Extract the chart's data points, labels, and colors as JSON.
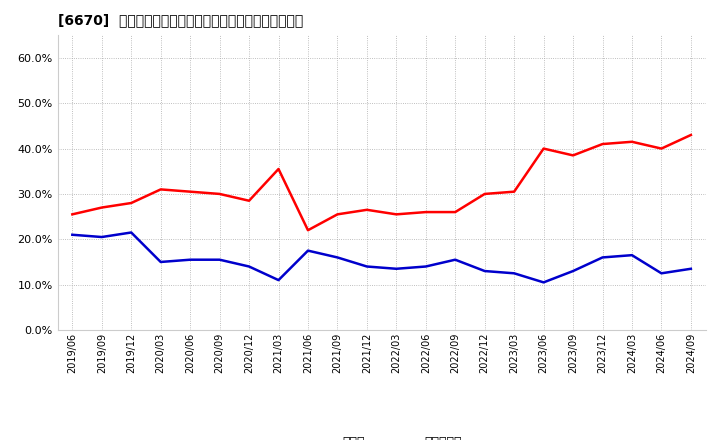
{
  "title": "[6670]  現預金、有利子負債の総資産に対する比率の推移",
  "ylim": [
    0.0,
    0.65
  ],
  "yticks": [
    0.0,
    0.1,
    0.2,
    0.3,
    0.4,
    0.5,
    0.6
  ],
  "legend_labels": [
    "現預金",
    "有利子負債"
  ],
  "line_colors": [
    "#ff0000",
    "#0000cc"
  ],
  "background_color": "#ffffff",
  "plot_bg_color": "#ffffff",
  "dates": [
    "2019/06",
    "2019/09",
    "2019/12",
    "2020/03",
    "2020/06",
    "2020/09",
    "2020/12",
    "2021/03",
    "2021/06",
    "2021/09",
    "2021/12",
    "2022/03",
    "2022/06",
    "2022/09",
    "2022/12",
    "2023/03",
    "2023/06",
    "2023/09",
    "2023/12",
    "2024/03",
    "2024/06",
    "2024/09"
  ],
  "cash": [
    0.255,
    0.27,
    0.28,
    0.31,
    0.305,
    0.3,
    0.285,
    0.355,
    0.22,
    0.255,
    0.265,
    0.255,
    0.26,
    0.26,
    0.3,
    0.305,
    0.4,
    0.385,
    0.41,
    0.415,
    0.4,
    0.43
  ],
  "debt": [
    0.21,
    0.205,
    0.215,
    0.15,
    0.155,
    0.155,
    0.14,
    0.11,
    0.175,
    0.16,
    0.14,
    0.135,
    0.14,
    0.155,
    0.13,
    0.125,
    0.105,
    0.13,
    0.16,
    0.165,
    0.125,
    0.135
  ]
}
